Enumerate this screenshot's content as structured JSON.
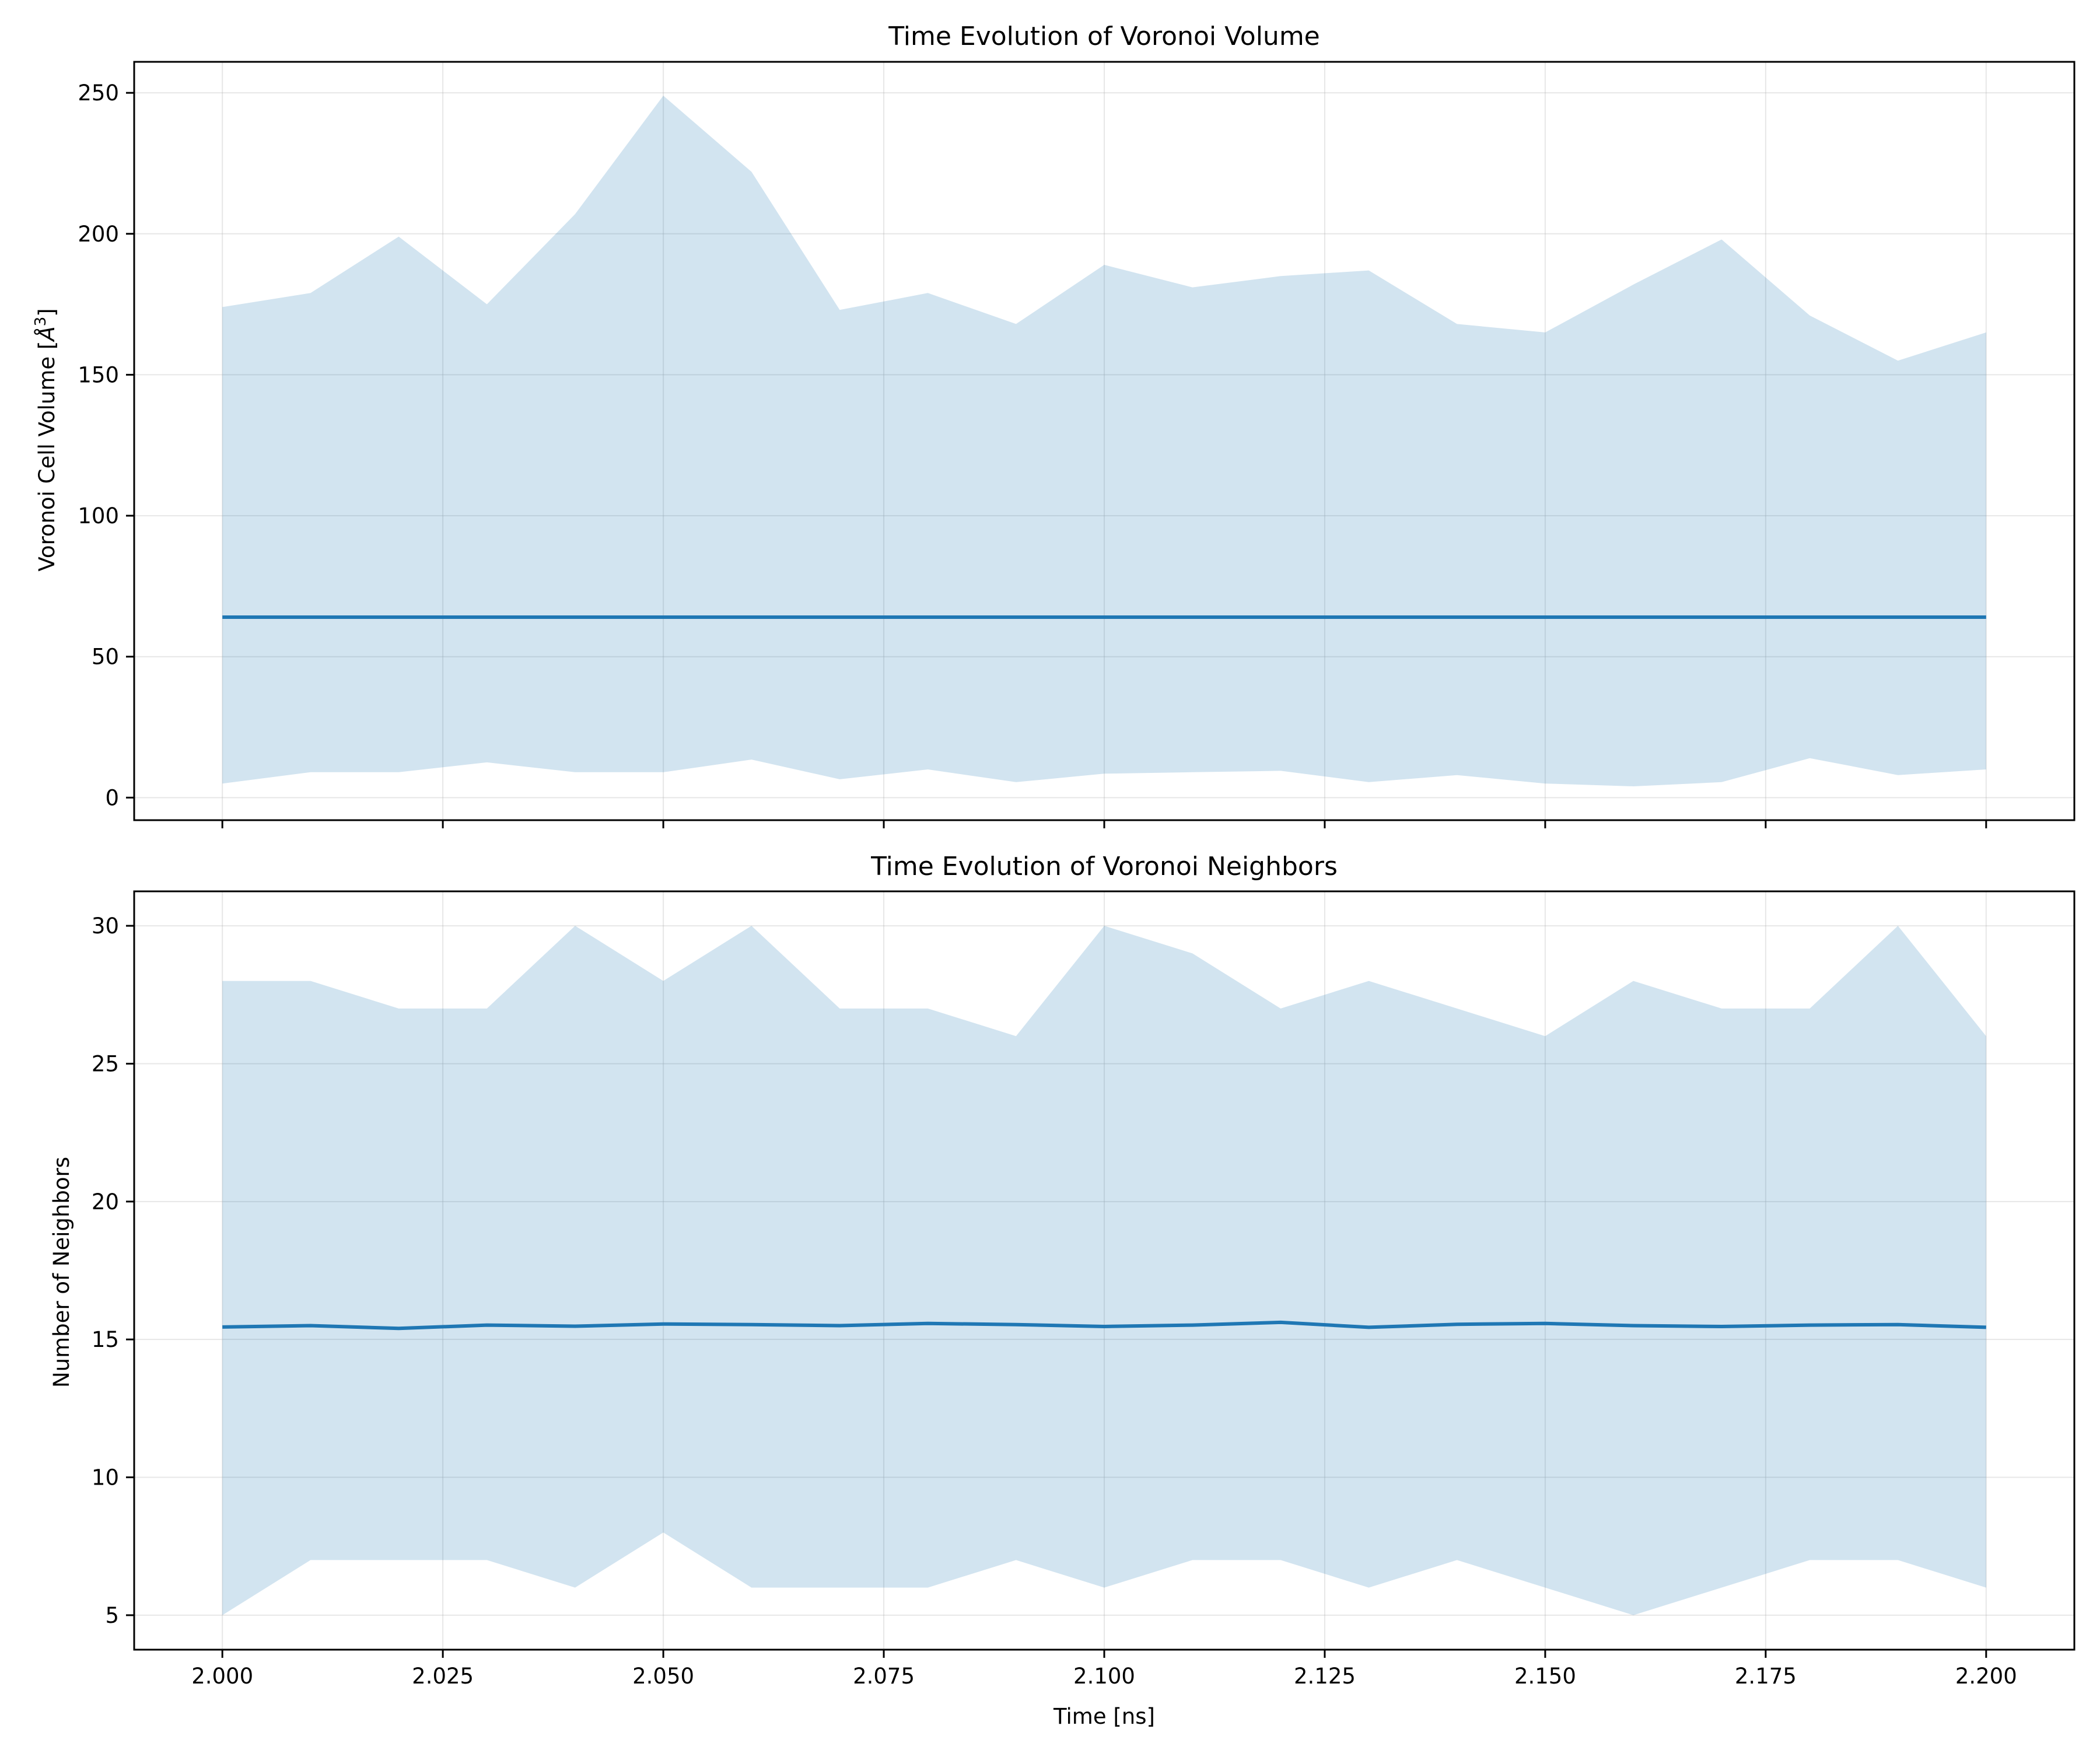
{
  "chart_data": [
    {
      "type": "area",
      "title": "Time Evolution of Voronoi Volume",
      "xlabel": "",
      "ylabel_main": "Voronoi Cell Volume [",
      "ylabel_sym": "Å",
      "ylabel_sup": "3",
      "ylabel_end": "]",
      "xlim": [
        1.99,
        2.21
      ],
      "ylim": [
        -8,
        261
      ],
      "xticks": [
        2.0,
        2.025,
        2.05,
        2.075,
        2.1,
        2.125,
        2.15,
        2.175,
        2.2
      ],
      "xtick_labels": [
        "",
        "",
        "",
        "",
        "",
        "",
        "",
        "",
        ""
      ],
      "yticks": [
        0,
        50,
        100,
        150,
        200,
        250
      ],
      "ytick_labels": [
        "0",
        "50",
        "100",
        "150",
        "200",
        "250"
      ],
      "grid": true,
      "x": [
        2.0,
        2.01,
        2.02,
        2.03,
        2.04,
        2.05,
        2.06,
        2.07,
        2.08,
        2.09,
        2.1,
        2.11,
        2.12,
        2.13,
        2.14,
        2.15,
        2.16,
        2.17,
        2.18,
        2.19,
        2.2
      ],
      "series": [
        {
          "role": "mean",
          "values": [
            64,
            64,
            64,
            64,
            64,
            64,
            64,
            64,
            64,
            64,
            64,
            64,
            64,
            64,
            64,
            64,
            64,
            64,
            64,
            64,
            64
          ],
          "color": "#1f77b4"
        },
        {
          "role": "band_max",
          "values": [
            174,
            179,
            199,
            175,
            207,
            249,
            222,
            173,
            179,
            168,
            189,
            181,
            185,
            187,
            168,
            165,
            182,
            198,
            171,
            155,
            165
          ],
          "color": "#1f77b4"
        },
        {
          "role": "band_min",
          "values": [
            5,
            9,
            9,
            12.5,
            9,
            9,
            13.5,
            6.5,
            10,
            5.5,
            8.5,
            9,
            9.5,
            5.5,
            8,
            5,
            4,
            5.5,
            14,
            8,
            10
          ],
          "color": "#1f77b4"
        }
      ]
    },
    {
      "type": "area",
      "title": "Time Evolution of Voronoi Neighbors",
      "xlabel": "Time [ns]",
      "ylabel": "Number of Neighbors",
      "xlim": [
        1.99,
        2.21
      ],
      "ylim": [
        3.75,
        31.25
      ],
      "xticks": [
        2.0,
        2.025,
        2.05,
        2.075,
        2.1,
        2.125,
        2.15,
        2.175,
        2.2
      ],
      "xtick_labels": [
        "2.000",
        "2.025",
        "2.050",
        "2.075",
        "2.100",
        "2.125",
        "2.150",
        "2.175",
        "2.200"
      ],
      "yticks": [
        5,
        10,
        15,
        20,
        25,
        30
      ],
      "ytick_labels": [
        "5",
        "10",
        "15",
        "20",
        "25",
        "30"
      ],
      "grid": true,
      "x": [
        2.0,
        2.01,
        2.02,
        2.03,
        2.04,
        2.05,
        2.06,
        2.07,
        2.08,
        2.09,
        2.1,
        2.11,
        2.12,
        2.13,
        2.14,
        2.15,
        2.16,
        2.17,
        2.18,
        2.19,
        2.2
      ],
      "series": [
        {
          "role": "mean",
          "values": [
            15.45,
            15.5,
            15.4,
            15.52,
            15.48,
            15.56,
            15.54,
            15.5,
            15.58,
            15.54,
            15.47,
            15.52,
            15.62,
            15.44,
            15.55,
            15.58,
            15.5,
            15.47,
            15.52,
            15.54,
            15.44
          ],
          "color": "#1f77b4"
        },
        {
          "role": "band_max",
          "values": [
            28,
            28,
            27,
            27,
            30,
            28,
            30,
            27,
            27,
            26,
            30,
            29,
            27,
            28,
            27,
            26,
            28,
            27,
            27,
            30,
            26
          ],
          "color": "#1f77b4"
        },
        {
          "role": "band_min",
          "values": [
            5,
            7,
            7,
            7,
            6,
            8,
            6,
            6,
            6,
            7,
            6,
            7,
            7,
            6,
            7,
            6,
            5,
            6,
            7,
            7,
            6
          ],
          "color": "#1f77b4"
        }
      ]
    }
  ]
}
